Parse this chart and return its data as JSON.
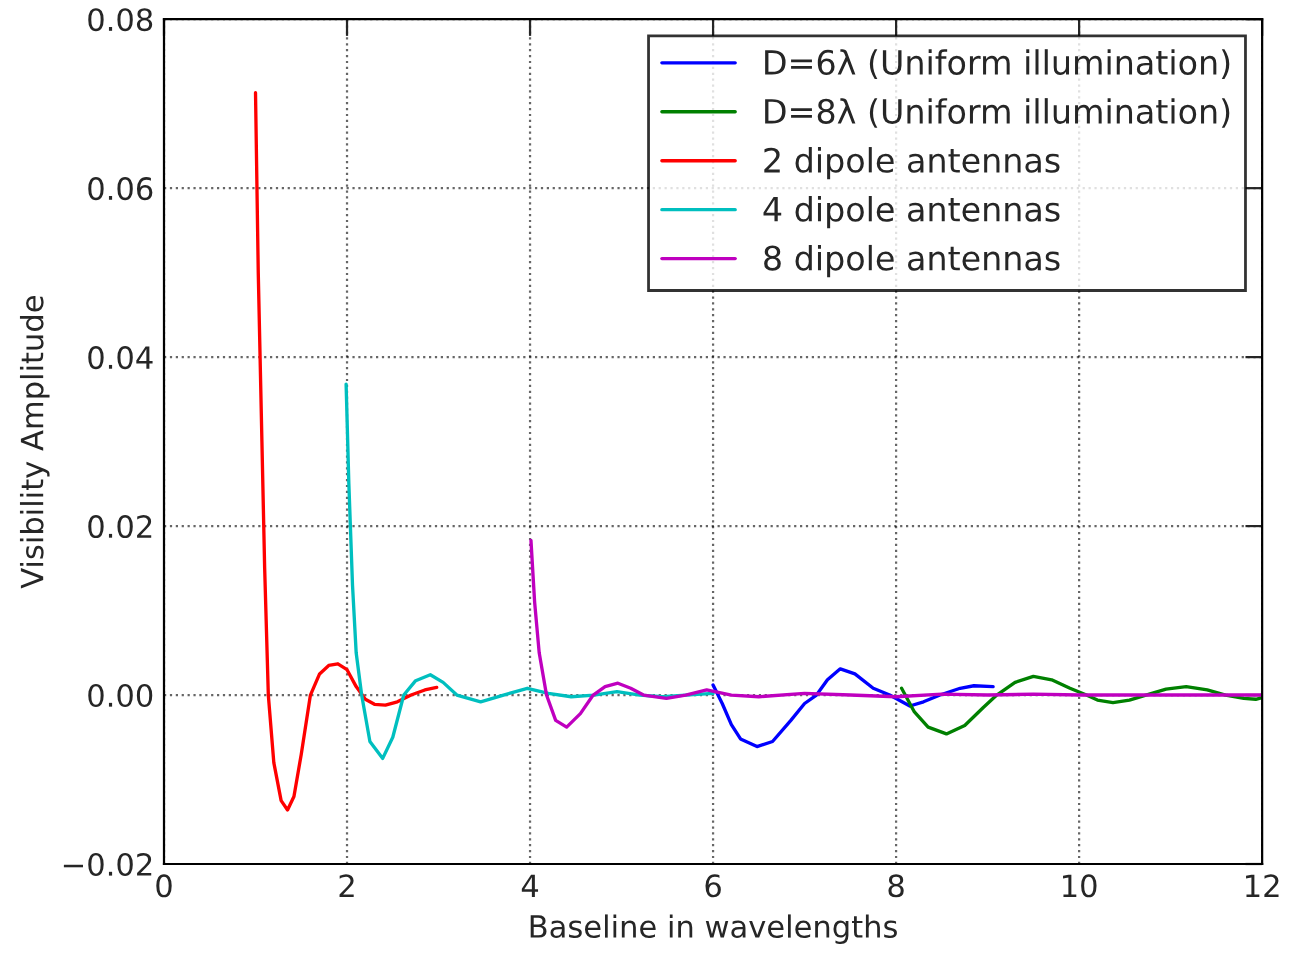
{
  "chart_data": {
    "type": "line",
    "xlabel": "Baseline in wavelengths",
    "ylabel": "Visibility Amplitude",
    "xlim": [
      0,
      12
    ],
    "xticks": [
      0,
      2,
      4,
      6,
      8,
      10,
      12
    ],
    "ylim": [
      -0.02,
      0.08
    ],
    "yticks": [
      {
        "value": -0.02,
        "label": "−0.02"
      },
      {
        "value": 0.0,
        "label": "0.00"
      },
      {
        "value": 0.02,
        "label": "0.02"
      },
      {
        "value": 0.04,
        "label": "0.04"
      },
      {
        "value": 0.06,
        "label": "0.06"
      },
      {
        "value": 0.08,
        "label": "0.08"
      }
    ],
    "grid": true,
    "legend": "top right",
    "line_style": "solid",
    "marker": "none",
    "series": [
      {
        "name": "D=6λ (Uniform illumination)",
        "color": "#0000ff",
        "x": [
          6.0,
          6.1,
          6.2,
          6.3,
          6.48,
          6.65,
          6.85,
          7.0,
          7.13,
          7.25,
          7.39,
          7.55,
          7.75,
          7.93,
          8.15,
          8.3,
          8.48,
          8.7,
          8.85,
          9.06
        ],
        "values": [
          0.0012,
          -0.001,
          -0.0035,
          -0.0052,
          -0.0061,
          -0.0055,
          -0.003,
          -0.001,
          0.0,
          0.0018,
          0.0031,
          0.0025,
          0.0008,
          0.0,
          -0.0013,
          -0.0008,
          0.0,
          0.0008,
          0.0011,
          0.001
        ]
      },
      {
        "name": "D=8λ (Uniform illumination)",
        "color": "#008000",
        "x": [
          8.06,
          8.2,
          8.35,
          8.55,
          8.75,
          8.95,
          9.1,
          9.3,
          9.5,
          9.7,
          9.9,
          10.08,
          10.2,
          10.37,
          10.55,
          10.73,
          10.95,
          11.17,
          11.4,
          11.6,
          11.8,
          11.93,
          12.0
        ],
        "values": [
          0.0008,
          -0.002,
          -0.0038,
          -0.0046,
          -0.0036,
          -0.0015,
          0.0,
          0.0015,
          0.0022,
          0.0018,
          0.0008,
          0.0,
          -0.0006,
          -0.0009,
          -0.0006,
          0.0,
          0.0007,
          0.001,
          0.0006,
          0.0,
          -0.0004,
          -0.0005,
          -0.0003
        ]
      },
      {
        "name": "2 dipole antennas",
        "color": "#ff0000",
        "x": [
          1.0,
          1.03,
          1.07,
          1.1,
          1.14,
          1.2,
          1.28,
          1.35,
          1.42,
          1.5,
          1.6,
          1.7,
          1.8,
          1.9,
          2.0,
          2.1,
          2.2,
          2.3,
          2.42,
          2.55,
          2.7,
          2.85,
          2.98
        ],
        "values": [
          0.0713,
          0.05,
          0.03,
          0.015,
          0.0,
          -0.008,
          -0.0125,
          -0.0136,
          -0.012,
          -0.007,
          0.0,
          0.0025,
          0.0035,
          0.0037,
          0.003,
          0.001,
          -0.0005,
          -0.0011,
          -0.0012,
          -0.0008,
          0.0,
          0.0006,
          0.0009
        ]
      },
      {
        "name": "4 dipole antennas",
        "color": "#00bfbf",
        "x": [
          1.99,
          2.02,
          2.06,
          2.1,
          2.16,
          2.25,
          2.39,
          2.5,
          2.62,
          2.75,
          2.91,
          3.05,
          3.2,
          3.46,
          3.71,
          3.97,
          4.2,
          4.45,
          4.7,
          4.95,
          5.2,
          5.45,
          5.7,
          6.0
        ],
        "values": [
          0.0368,
          0.025,
          0.013,
          0.005,
          0.0,
          -0.0055,
          -0.0075,
          -0.005,
          0.0,
          0.0017,
          0.0024,
          0.0015,
          0.0,
          -0.0008,
          0.0,
          0.0008,
          0.0002,
          -0.0002,
          0.0,
          0.0004,
          0.0,
          -0.0002,
          0.0,
          0.0002
        ]
      },
      {
        "name": "8 dipole antennas",
        "color": "#bf00bf",
        "x": [
          4.01,
          4.05,
          4.1,
          4.18,
          4.28,
          4.4,
          4.55,
          4.69,
          4.82,
          4.96,
          5.1,
          5.24,
          5.49,
          5.7,
          5.93,
          6.2,
          6.5,
          7.0,
          7.5,
          8.0,
          8.5,
          9.0,
          9.5,
          10.0,
          10.5,
          11.0,
          11.5,
          12.0
        ],
        "values": [
          0.0183,
          0.011,
          0.005,
          0.0,
          -0.003,
          -0.0038,
          -0.0022,
          0.0,
          0.001,
          0.0014,
          0.0008,
          0.0,
          -0.0004,
          0.0,
          0.0006,
          0.0,
          -0.0002,
          0.0002,
          0.0,
          -0.0002,
          0.0001,
          0.0,
          0.0001,
          0.0,
          0.0,
          0.0,
          0.0,
          0.0
        ]
      }
    ]
  }
}
